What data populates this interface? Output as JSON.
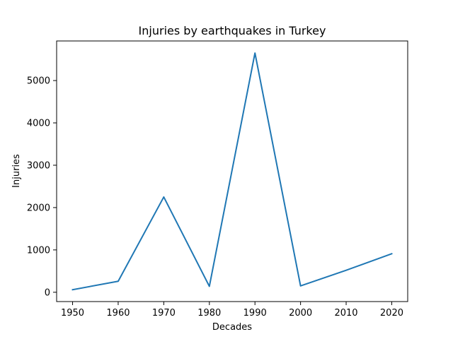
{
  "chart_data": {
    "type": "line",
    "title": "Injuries by earthquakes in Turkey",
    "xlabel": "Decades",
    "ylabel": "Injuries",
    "x": [
      "1950",
      "1960",
      "1970",
      "1980",
      "1990",
      "2000",
      "2010",
      "2020"
    ],
    "series": [
      {
        "values": [
          60,
          260,
          2250,
          140,
          5650,
          150,
          520,
          910
        ],
        "color": "#1f77b4"
      }
    ],
    "yticks": [
      "0",
      "1000",
      "2000",
      "3000",
      "4000",
      "5000"
    ],
    "xticks": [
      "1950",
      "1960",
      "1970",
      "1980",
      "1990",
      "2000",
      "2010",
      "2020"
    ],
    "ylim": [
      -220,
      5935
    ],
    "xlim": [
      1946.5,
      2023.5
    ],
    "grid": false,
    "legend": "none"
  }
}
